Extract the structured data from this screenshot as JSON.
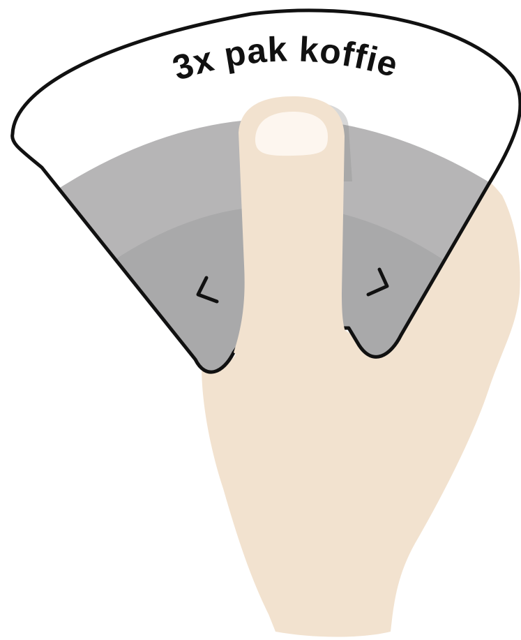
{
  "menu": {
    "label": "3x pak koffie",
    "prev_icon": "chevron-left-icon",
    "next_icon": "chevron-right-icon"
  },
  "colors": {
    "outline": "#111111",
    "label_bg": "#ffffff",
    "outer_band": "#b6b5b6",
    "inner_band": "#a9a9aa",
    "skin": "#f2e2cf",
    "nail": "#fdf6ef",
    "chevron": "#111111"
  }
}
